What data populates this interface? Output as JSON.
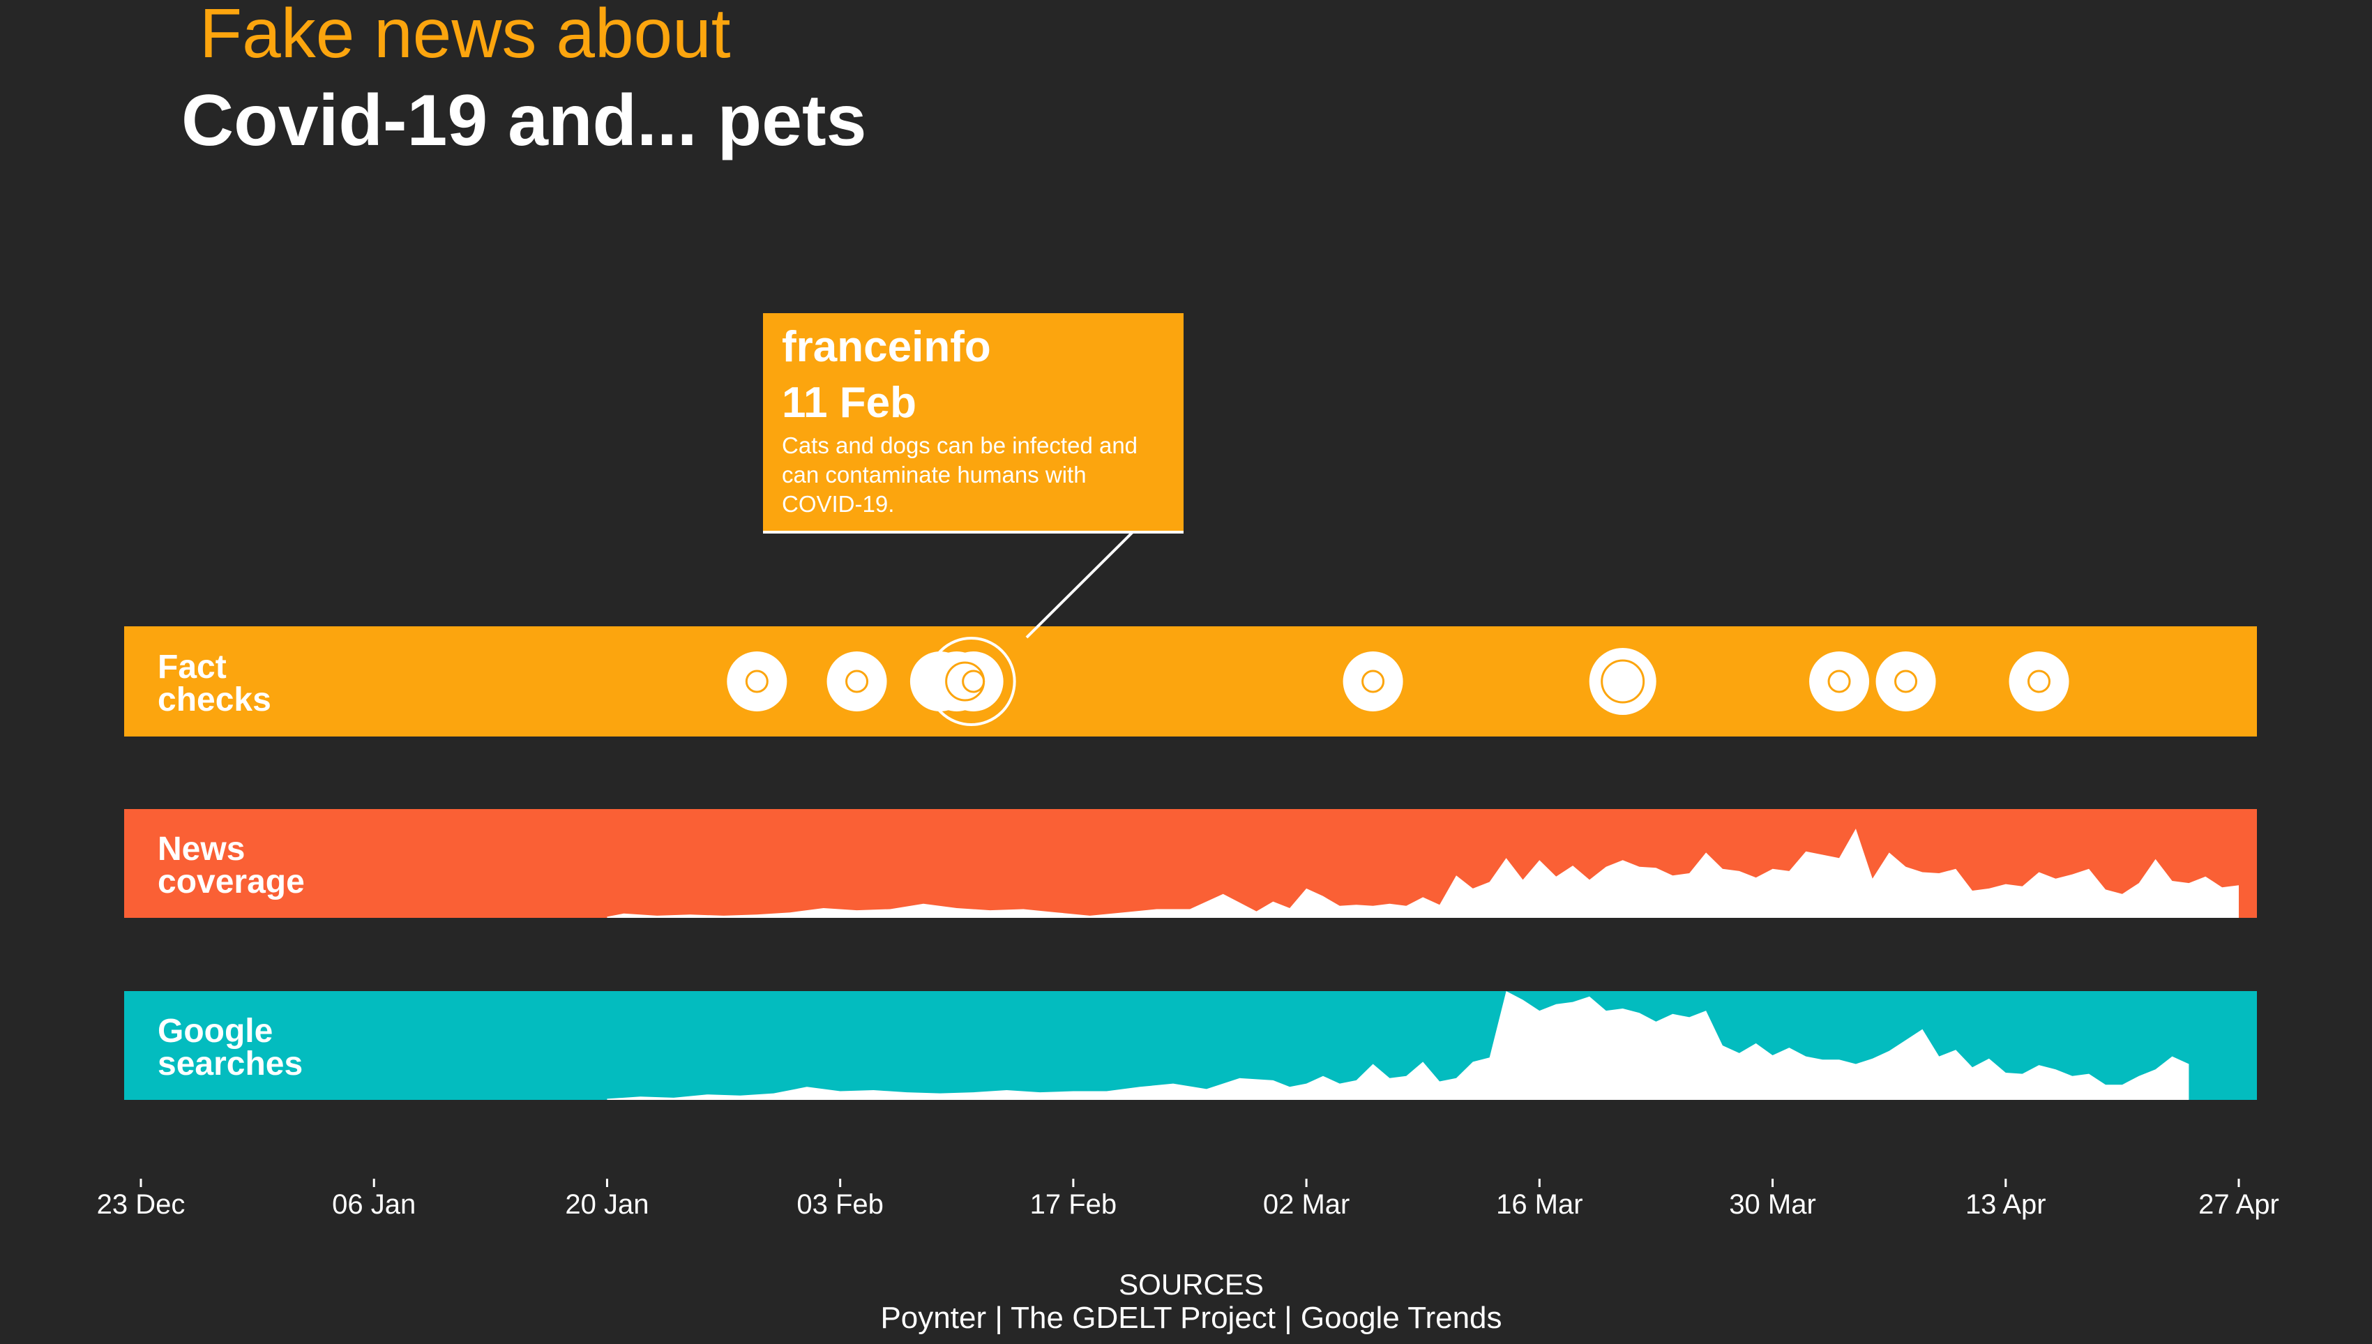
{
  "header": {
    "kicker": "Fake news about",
    "title": "Covid-19 and... pets"
  },
  "colors": {
    "background": "#262626",
    "fact_checks": "#FCA50E",
    "news_coverage": "#FA6035",
    "google_searches": "#03BCBF",
    "fill": "#FFFFFF"
  },
  "tooltip": {
    "source": "franceinfo",
    "date": "11 Feb",
    "text": "Cats and dogs can be infected and can contaminate humans with COVID-19."
  },
  "footer": {
    "sources_label": "SOURCES",
    "sources": "Poynter | The GDELT Project | Google Trends"
  },
  "chart_data": {
    "type": "area",
    "x_axis": {
      "type": "date",
      "range": [
        "2019-12-23",
        "2020-04-27"
      ],
      "ticks": [
        {
          "date": "2019-12-23",
          "label": "23 Dec"
        },
        {
          "date": "2020-01-06",
          "label": "06 Jan"
        },
        {
          "date": "2020-01-20",
          "label": "20 Jan"
        },
        {
          "date": "2020-02-03",
          "label": "03 Feb"
        },
        {
          "date": "2020-02-17",
          "label": "17 Feb"
        },
        {
          "date": "2020-03-02",
          "label": "02 Mar"
        },
        {
          "date": "2020-03-16",
          "label": "16 Mar"
        },
        {
          "date": "2020-03-30",
          "label": "30 Mar"
        },
        {
          "date": "2020-04-13",
          "label": "13 Apr"
        },
        {
          "date": "2020-04-27",
          "label": "27 Apr"
        }
      ]
    },
    "fact_checks": {
      "label_line1": "Fact",
      "label_line2": "checks",
      "events": [
        {
          "date": "2020-01-29",
          "count": 1
        },
        {
          "date": "2020-02-04",
          "count": 1
        },
        {
          "date": "2020-02-09",
          "count": 1
        },
        {
          "date": "2020-02-10",
          "count": 1
        },
        {
          "date": "2020-02-11",
          "count": 1,
          "highlighted": true
        },
        {
          "date": "2020-03-06",
          "count": 1
        },
        {
          "date": "2020-03-21",
          "count": 2
        },
        {
          "date": "2020-04-03",
          "count": 1
        },
        {
          "date": "2020-04-07",
          "count": 1
        },
        {
          "date": "2020-04-15",
          "count": 1
        }
      ]
    },
    "news_coverage": {
      "label_line1": "News",
      "label_line2": "coverage",
      "ylim": [
        0,
        100
      ],
      "dates": [
        "2020-01-20",
        "2020-01-21",
        "2020-01-23",
        "2020-01-25",
        "2020-01-27",
        "2020-01-29",
        "2020-01-31",
        "2020-02-02",
        "2020-02-04",
        "2020-02-06",
        "2020-02-08",
        "2020-02-10",
        "2020-02-12",
        "2020-02-14",
        "2020-02-16",
        "2020-02-18",
        "2020-02-20",
        "2020-02-22",
        "2020-02-24",
        "2020-02-26",
        "2020-02-28",
        "2020-02-29",
        "2020-03-01",
        "2020-03-02",
        "2020-03-03",
        "2020-03-04",
        "2020-03-05",
        "2020-03-06",
        "2020-03-07",
        "2020-03-08",
        "2020-03-09",
        "2020-03-10",
        "2020-03-11",
        "2020-03-12",
        "2020-03-13",
        "2020-03-14",
        "2020-03-15",
        "2020-03-16",
        "2020-03-17",
        "2020-03-18",
        "2020-03-19",
        "2020-03-20",
        "2020-03-21",
        "2020-03-22",
        "2020-03-23",
        "2020-03-24",
        "2020-03-25",
        "2020-03-26",
        "2020-03-27",
        "2020-03-28",
        "2020-03-29",
        "2020-03-30",
        "2020-03-31",
        "2020-04-01",
        "2020-04-02",
        "2020-04-03",
        "2020-04-04",
        "2020-04-05",
        "2020-04-06",
        "2020-04-07",
        "2020-04-08",
        "2020-04-09",
        "2020-04-10",
        "2020-04-11",
        "2020-04-12",
        "2020-04-13",
        "2020-04-14",
        "2020-04-15",
        "2020-04-16",
        "2020-04-17",
        "2020-04-18",
        "2020-04-19",
        "2020-04-20",
        "2020-04-21",
        "2020-04-22",
        "2020-04-23",
        "2020-04-24",
        "2020-04-25",
        "2020-04-26",
        "2020-04-27"
      ],
      "values": [
        1,
        4,
        2,
        3,
        2,
        3,
        5,
        9,
        7,
        8,
        13,
        9,
        7,
        8,
        5,
        2,
        5,
        8,
        8,
        22,
        6,
        15,
        9,
        27,
        20,
        11,
        12,
        11,
        13,
        11,
        19,
        12,
        39,
        27,
        33,
        55,
        35,
        53,
        38,
        48,
        35,
        47,
        53,
        47,
        46,
        39,
        41,
        60,
        45,
        43,
        37,
        45,
        43,
        61,
        58,
        55,
        82,
        36,
        60,
        47,
        42,
        41,
        45,
        25,
        27,
        31,
        29,
        42,
        36,
        40,
        45,
        26,
        22,
        32,
        54,
        34,
        32,
        38,
        28,
        30
      ]
    },
    "google_searches": {
      "label_line1": "Google",
      "label_line2": "searches",
      "ylim": [
        0,
        100
      ],
      "dates": [
        "2020-01-20",
        "2020-01-22",
        "2020-01-24",
        "2020-01-26",
        "2020-01-28",
        "2020-01-30",
        "2020-02-01",
        "2020-02-03",
        "2020-02-05",
        "2020-02-07",
        "2020-02-09",
        "2020-02-11",
        "2020-02-13",
        "2020-02-15",
        "2020-02-17",
        "2020-02-19",
        "2020-02-21",
        "2020-02-23",
        "2020-02-25",
        "2020-02-27",
        "2020-02-29",
        "2020-03-01",
        "2020-03-02",
        "2020-03-03",
        "2020-03-04",
        "2020-03-05",
        "2020-03-06",
        "2020-03-07",
        "2020-03-08",
        "2020-03-09",
        "2020-03-10",
        "2020-03-11",
        "2020-03-12",
        "2020-03-13",
        "2020-03-14",
        "2020-03-15",
        "2020-03-16",
        "2020-03-17",
        "2020-03-18",
        "2020-03-19",
        "2020-03-20",
        "2020-03-21",
        "2020-03-22",
        "2020-03-23",
        "2020-03-24",
        "2020-03-25",
        "2020-03-26",
        "2020-03-27",
        "2020-03-28",
        "2020-03-29",
        "2020-03-30",
        "2020-03-31",
        "2020-04-01",
        "2020-04-02",
        "2020-04-03",
        "2020-04-04",
        "2020-04-05",
        "2020-04-06",
        "2020-04-07",
        "2020-04-08",
        "2020-04-09",
        "2020-04-10",
        "2020-04-11",
        "2020-04-12",
        "2020-04-13",
        "2020-04-14",
        "2020-04-15",
        "2020-04-16",
        "2020-04-17",
        "2020-04-18",
        "2020-04-19",
        "2020-04-20",
        "2020-04-21",
        "2020-04-22",
        "2020-04-23",
        "2020-04-24"
      ],
      "values": [
        1,
        3,
        2,
        5,
        4,
        6,
        12,
        8,
        9,
        7,
        6,
        7,
        9,
        7,
        8,
        8,
        12,
        15,
        10,
        20,
        18,
        12,
        15,
        22,
        15,
        18,
        33,
        20,
        22,
        35,
        17,
        20,
        35,
        39,
        100,
        92,
        82,
        88,
        90,
        95,
        82,
        84,
        80,
        72,
        79,
        76,
        82,
        50,
        43,
        52,
        41,
        48,
        40,
        37,
        37,
        33,
        38,
        45,
        55,
        65,
        40,
        46,
        30,
        38,
        25,
        24,
        32,
        28,
        22,
        24,
        14,
        14,
        22,
        28,
        40,
        33
      ]
    }
  }
}
